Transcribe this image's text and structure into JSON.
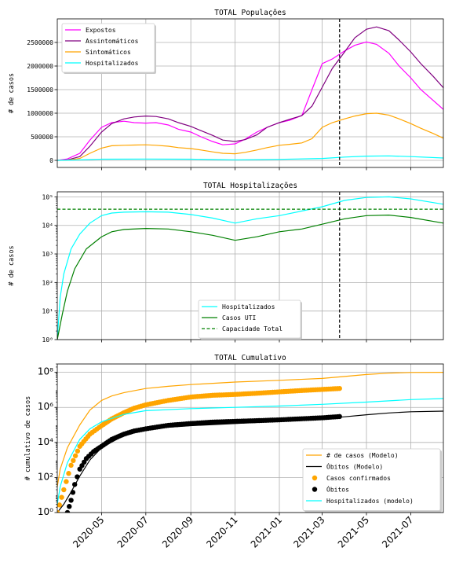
{
  "chart_data": [
    {
      "type": "line",
      "title": "TOTAL Populações",
      "ylabel": "# de casos",
      "xlim": [
        "2020-03-01",
        "2021-08-15"
      ],
      "ylim": [
        -150000,
        3000000
      ],
      "yticks": [
        0,
        500000,
        1000000,
        1500000,
        2000000,
        2500000
      ],
      "ytick_labels": [
        "0",
        "500000",
        "1000000",
        "1500000",
        "2000000",
        "2500000"
      ],
      "grid": true,
      "legend": "top-left",
      "vline": "2021-03-25",
      "series": [
        {
          "name": "Expostos",
          "color": "#ff00ff",
          "x": [
            "2020-03-01",
            "2020-03-15",
            "2020-04-01",
            "2020-04-15",
            "2020-05-01",
            "2020-05-15",
            "2020-06-01",
            "2020-06-15",
            "2020-07-01",
            "2020-07-15",
            "2020-08-01",
            "2020-08-15",
            "2020-09-01",
            "2020-09-15",
            "2020-10-01",
            "2020-10-15",
            "2020-11-01",
            "2020-11-15",
            "2020-12-01",
            "2020-12-15",
            "2021-01-01",
            "2021-01-15",
            "2021-02-01",
            "2021-02-15",
            "2021-03-01",
            "2021-03-15",
            "2021-04-01",
            "2021-04-15",
            "2021-05-01",
            "2021-05-15",
            "2021-06-01",
            "2021-06-15",
            "2021-07-01",
            "2021-07-15",
            "2021-08-01",
            "2021-08-15"
          ],
          "values": [
            0,
            30000,
            150000,
            430000,
            700000,
            800000,
            830000,
            800000,
            790000,
            800000,
            750000,
            660000,
            600000,
            500000,
            400000,
            330000,
            350000,
            450000,
            600000,
            700000,
            800000,
            850000,
            950000,
            1500000,
            2050000,
            2150000,
            2320000,
            2440000,
            2510000,
            2460000,
            2270000,
            2000000,
            1750000,
            1500000,
            1270000,
            1080000
          ]
        },
        {
          "name": "Assintomáticos",
          "color": "#800080",
          "x": [
            "2020-03-01",
            "2020-03-15",
            "2020-04-01",
            "2020-04-15",
            "2020-05-01",
            "2020-05-15",
            "2020-06-01",
            "2020-06-15",
            "2020-07-01",
            "2020-07-15",
            "2020-08-01",
            "2020-08-15",
            "2020-09-01",
            "2020-09-15",
            "2020-10-01",
            "2020-10-15",
            "2020-11-01",
            "2020-11-15",
            "2020-12-01",
            "2020-12-15",
            "2021-01-01",
            "2021-01-15",
            "2021-02-01",
            "2021-02-15",
            "2021-03-01",
            "2021-03-15",
            "2021-04-01",
            "2021-04-15",
            "2021-05-01",
            "2021-05-15",
            "2021-06-01",
            "2021-06-15",
            "2021-07-01",
            "2021-07-15",
            "2021-08-01",
            "2021-08-15"
          ],
          "values": [
            0,
            10000,
            80000,
            300000,
            600000,
            780000,
            880000,
            920000,
            940000,
            930000,
            880000,
            800000,
            720000,
            630000,
            530000,
            430000,
            400000,
            440000,
            540000,
            700000,
            800000,
            870000,
            950000,
            1150000,
            1550000,
            1950000,
            2300000,
            2600000,
            2780000,
            2830000,
            2750000,
            2550000,
            2300000,
            2050000,
            1780000,
            1540000
          ]
        },
        {
          "name": "Sintomáticos",
          "color": "#ffa500",
          "x": [
            "2020-03-01",
            "2020-03-15",
            "2020-04-01",
            "2020-04-15",
            "2020-05-01",
            "2020-05-15",
            "2020-06-01",
            "2020-06-15",
            "2020-07-01",
            "2020-07-15",
            "2020-08-01",
            "2020-08-15",
            "2020-09-01",
            "2020-09-15",
            "2020-10-01",
            "2020-10-15",
            "2020-11-01",
            "2020-11-15",
            "2020-12-01",
            "2020-12-15",
            "2021-01-01",
            "2021-01-15",
            "2021-02-01",
            "2021-02-15",
            "2021-03-01",
            "2021-03-15",
            "2021-04-01",
            "2021-04-15",
            "2021-05-01",
            "2021-05-15",
            "2021-06-01",
            "2021-06-15",
            "2021-07-01",
            "2021-07-15",
            "2021-08-01",
            "2021-08-15"
          ],
          "values": [
            0,
            5000,
            40000,
            150000,
            260000,
            310000,
            320000,
            325000,
            330000,
            320000,
            300000,
            270000,
            250000,
            220000,
            180000,
            150000,
            140000,
            170000,
            220000,
            270000,
            320000,
            340000,
            370000,
            460000,
            700000,
            800000,
            880000,
            940000,
            990000,
            1000000,
            960000,
            880000,
            780000,
            680000,
            570000,
            470000
          ]
        },
        {
          "name": "Hospitalizados",
          "color": "#00ffff",
          "x": [
            "2020-03-01",
            "2020-04-01",
            "2020-05-01",
            "2020-07-01",
            "2020-09-01",
            "2020-11-01",
            "2021-01-01",
            "2021-03-01",
            "2021-04-01",
            "2021-05-01",
            "2021-06-01",
            "2021-07-01",
            "2021-08-15"
          ],
          "values": [
            0,
            10000,
            25000,
            28000,
            25000,
            12000,
            22000,
            40000,
            70000,
            90000,
            95000,
            80000,
            50000
          ]
        }
      ]
    },
    {
      "type": "line",
      "title": "TOTAL Hospitalizações",
      "ylabel": "# de casos",
      "yscale": "log",
      "xlim": [
        "2020-03-01",
        "2021-08-15"
      ],
      "ylim": [
        1,
        150000
      ],
      "yticks": [
        1,
        10,
        100,
        1000,
        10000,
        100000
      ],
      "ytick_labels": [
        "10⁰",
        "10¹",
        "10²",
        "10³",
        "10⁴",
        "10⁵"
      ],
      "grid": true,
      "legend": "lower-center",
      "vline": "2021-03-25",
      "series": [
        {
          "name": "Hospitalizados",
          "color": "#00ffff",
          "x": [
            "2020-03-01",
            "2020-03-05",
            "2020-03-10",
            "2020-03-20",
            "2020-04-01",
            "2020-04-15",
            "2020-05-01",
            "2020-05-15",
            "2020-06-01",
            "2020-07-01",
            "2020-08-01",
            "2020-09-01",
            "2020-10-01",
            "2020-11-01",
            "2020-12-01",
            "2021-01-01",
            "2021-02-01",
            "2021-03-01",
            "2021-04-01",
            "2021-05-01",
            "2021-06-01",
            "2021-07-01",
            "2021-08-15"
          ],
          "values": [
            1,
            30,
            200,
            1500,
            5000,
            12000,
            22000,
            27000,
            29000,
            30000,
            29000,
            24000,
            18000,
            12000,
            17000,
            22000,
            32000,
            45000,
            75000,
            95000,
            100000,
            85000,
            55000
          ]
        },
        {
          "name": "Casos UTI",
          "color": "#008000",
          "x": [
            "2020-03-01",
            "2020-03-08",
            "2020-03-15",
            "2020-03-25",
            "2020-04-10",
            "2020-05-01",
            "2020-05-15",
            "2020-06-01",
            "2020-07-01",
            "2020-08-01",
            "2020-09-01",
            "2020-10-01",
            "2020-11-01",
            "2020-12-01",
            "2021-01-01",
            "2021-02-01",
            "2021-03-01",
            "2021-04-01",
            "2021-05-01",
            "2021-06-01",
            "2021-07-01",
            "2021-08-15"
          ],
          "values": [
            1,
            8,
            50,
            300,
            1500,
            4000,
            6000,
            7200,
            7800,
            7500,
            6000,
            4500,
            3000,
            4000,
            6000,
            7500,
            11000,
            17000,
            22000,
            23000,
            19000,
            12000
          ]
        },
        {
          "name": "Capacidade Total",
          "color": "#008000",
          "dashed": true,
          "x": [
            "2020-03-01",
            "2021-08-15"
          ],
          "values": [
            37000,
            37000
          ]
        }
      ]
    },
    {
      "type": "line",
      "title": "TOTAL Cumulativo",
      "ylabel": "# cumulativo de casos",
      "yscale": "log",
      "xlim": [
        "2020-03-01",
        "2021-08-15"
      ],
      "ylim": [
        1,
        300000000
      ],
      "yticks": [
        1,
        100,
        10000,
        1000000,
        100000000
      ],
      "ytick_labels": [
        "10⁰",
        "10²",
        "10⁴",
        "10⁶",
        "10⁸"
      ],
      "xtick_labels": [
        "2020-05",
        "2020-07",
        "2020-09",
        "2020-11",
        "2021-01",
        "2021-03",
        "2021-05",
        "2021-07"
      ],
      "xticks": [
        "2020-05-01",
        "2020-07-01",
        "2020-09-01",
        "2020-11-01",
        "2021-01-01",
        "2021-03-01",
        "2021-05-01",
        "2021-07-01"
      ],
      "grid": true,
      "legend": "lower-right",
      "series": [
        {
          "name": "# de casos (Modelo)",
          "color": "#ffa500",
          "x": [
            "2020-03-01",
            "2020-03-05",
            "2020-03-15",
            "2020-04-01",
            "2020-04-15",
            "2020-05-01",
            "2020-05-15",
            "2020-06-01",
            "2020-07-01",
            "2020-08-01",
            "2020-09-01",
            "2020-11-01",
            "2021-01-01",
            "2021-03-01",
            "2021-04-01",
            "2021-05-01",
            "2021-06-01",
            "2021-07-01",
            "2021-08-15"
          ],
          "values": [
            30,
            300,
            5000,
            100000,
            700000,
            2500000,
            4500000,
            7000000,
            12000000,
            16000000,
            20000000,
            28000000,
            35000000,
            45000000,
            58000000,
            75000000,
            90000000,
            98000000,
            100000000
          ]
        },
        {
          "name": "Óbitos (Modelo)",
          "color": "#000000",
          "x": [
            "2020-03-01",
            "2020-03-10",
            "2020-03-20",
            "2020-04-01",
            "2020-04-15",
            "2020-05-01",
            "2020-06-01",
            "2020-07-01",
            "2020-09-01",
            "2020-11-01",
            "2021-01-01",
            "2021-03-01",
            "2021-04-01",
            "2021-05-01",
            "2021-06-01",
            "2021-07-01",
            "2021-08-15"
          ],
          "values": [
            1,
            3,
            15,
            120,
            1000,
            5000,
            25000,
            60000,
            90000,
            120000,
            160000,
            230000,
            290000,
            380000,
            480000,
            560000,
            610000
          ]
        },
        {
          "name": "Casos confirmados",
          "color": "#ffa500",
          "markers": true,
          "x": [
            "2020-03-01",
            "2020-03-10",
            "2020-03-20",
            "2020-04-01",
            "2020-04-15",
            "2020-05-01",
            "2020-05-15",
            "2020-06-01",
            "2020-06-15",
            "2020-07-01",
            "2020-08-01",
            "2020-09-01",
            "2020-10-01",
            "2020-11-01",
            "2020-12-01",
            "2021-01-01",
            "2021-02-01",
            "2021-03-01",
            "2021-03-25"
          ],
          "values": [
            1,
            20,
            500,
            6000,
            30000,
            90000,
            220000,
            500000,
            900000,
            1400000,
            2500000,
            3900000,
            4900000,
            5500000,
            6400000,
            7700000,
            9200000,
            10600000,
            12000000
          ]
        },
        {
          "name": "Óbitos",
          "color": "#000000",
          "markers": true,
          "x": [
            "2020-03-15",
            "2020-03-20",
            "2020-03-25",
            "2020-04-01",
            "2020-04-10",
            "2020-04-20",
            "2020-05-01",
            "2020-05-15",
            "2020-06-01",
            "2020-06-15",
            "2020-07-01",
            "2020-08-01",
            "2020-09-01",
            "2020-10-01",
            "2020-11-01",
            "2020-12-01",
            "2021-01-01",
            "2021-02-01",
            "2021-03-01",
            "2021-03-25"
          ],
          "values": [
            1,
            5,
            40,
            300,
            1200,
            3000,
            6000,
            15000,
            30000,
            45000,
            60000,
            95000,
            120000,
            145000,
            160000,
            175000,
            195000,
            225000,
            255000,
            300000
          ]
        },
        {
          "name": "Hospitalizados (modelo)",
          "color": "#00ffff",
          "x": [
            "2020-03-01",
            "2020-03-05",
            "2020-03-15",
            "2020-04-01",
            "2020-04-15",
            "2020-05-01",
            "2020-06-01",
            "2020-07-01",
            "2020-09-01",
            "2020-11-01",
            "2021-01-01",
            "2021-03-01",
            "2021-05-01",
            "2021-07-01",
            "2021-08-15"
          ],
          "values": [
            3,
            30,
            700,
            15000,
            60000,
            150000,
            400000,
            650000,
            850000,
            1000000,
            1200000,
            1500000,
            2000000,
            2800000,
            3200000
          ]
        }
      ]
    }
  ]
}
